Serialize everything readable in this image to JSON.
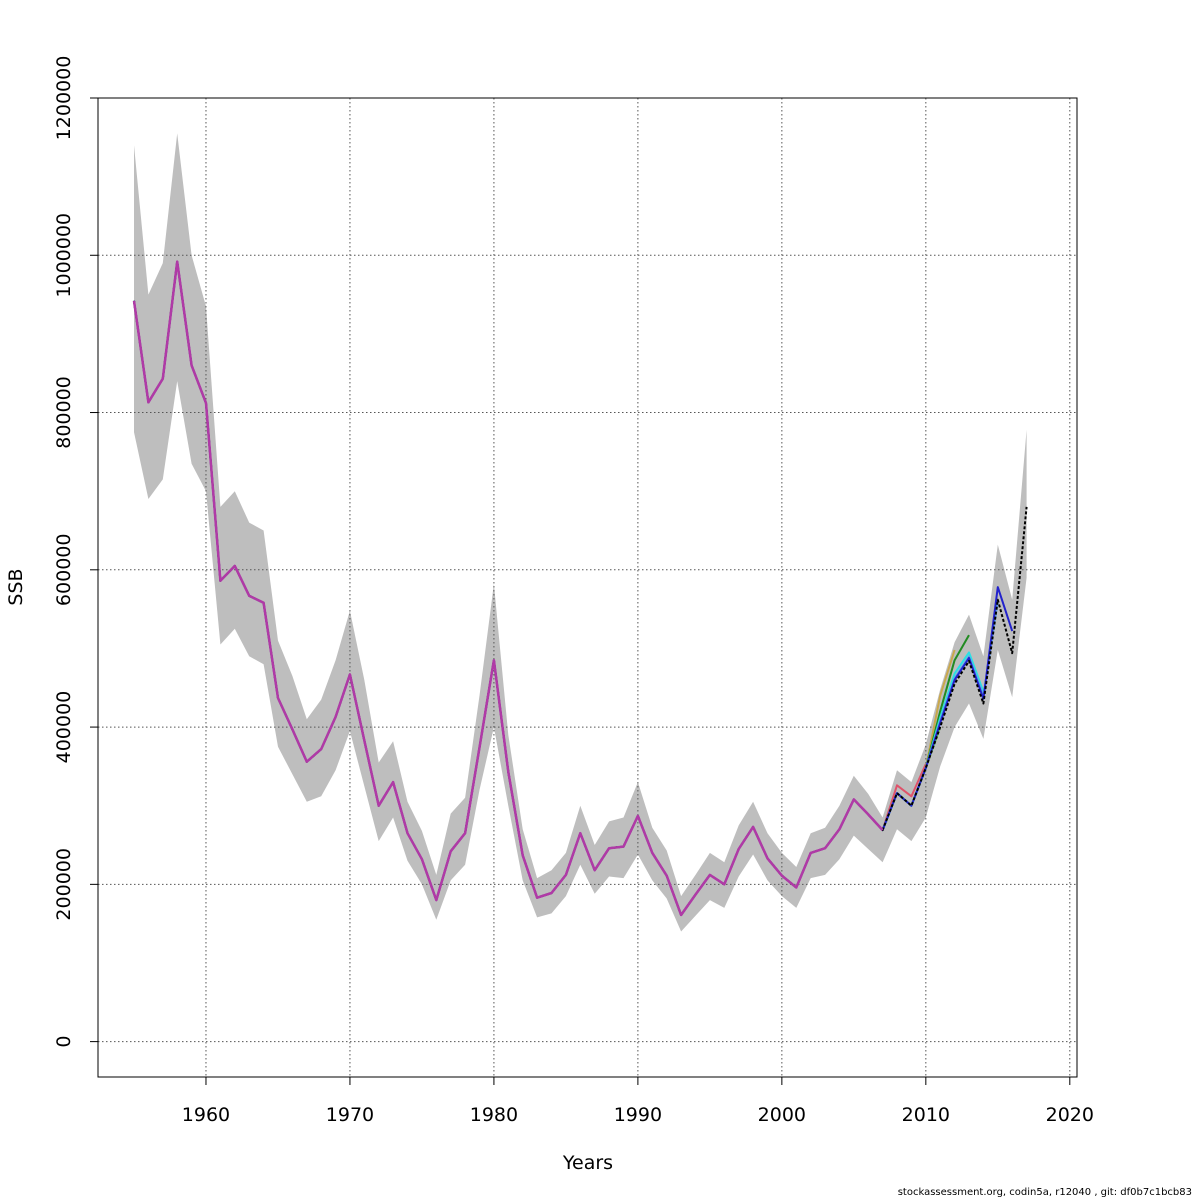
{
  "chart_data": {
    "type": "line",
    "xlabel": "Years",
    "ylabel": "SSB",
    "xlim": [
      1952.5,
      2020.5
    ],
    "ylim": [
      -45000,
      1200000
    ],
    "x_ticks": [
      1960,
      1970,
      1980,
      1990,
      2000,
      2010,
      2020
    ],
    "x_tick_labels": [
      "1960",
      "1970",
      "1980",
      "1990",
      "2000",
      "2010",
      "2020"
    ],
    "y_ticks": [
      0,
      200000,
      400000,
      600000,
      800000,
      1000000,
      1200000
    ],
    "y_tick_labels": [
      "0",
      "200000",
      "400000",
      "600000",
      "800000",
      "1000000",
      "1200000"
    ],
    "grid": true,
    "confidence_band_color": "#bebebe",
    "x": [
      1955,
      1956,
      1957,
      1958,
      1959,
      1960,
      1961,
      1962,
      1963,
      1964,
      1965,
      1966,
      1967,
      1968,
      1969,
      1970,
      1971,
      1972,
      1973,
      1974,
      1975,
      1976,
      1977,
      1978,
      1979,
      1980,
      1981,
      1982,
      1983,
      1984,
      1985,
      1986,
      1987,
      1988,
      1989,
      1990,
      1991,
      1992,
      1993,
      1994,
      1995,
      1996,
      1997,
      1998,
      1999,
      2000,
      2001,
      2002,
      2003,
      2004,
      2005,
      2006,
      2007,
      2008,
      2009,
      2010,
      2011,
      2012,
      2013,
      2014,
      2015,
      2016,
      2017
    ],
    "band_lower": [
      775000,
      690000,
      715000,
      840000,
      735000,
      700000,
      505000,
      525000,
      490000,
      480000,
      375000,
      340000,
      305000,
      312000,
      345000,
      395000,
      325000,
      255000,
      285000,
      230000,
      200000,
      155000,
      205000,
      225000,
      320000,
      400000,
      300000,
      205000,
      158000,
      163000,
      185000,
      225000,
      188000,
      210000,
      208000,
      238000,
      205000,
      182000,
      140000,
      160000,
      180000,
      170000,
      210000,
      238000,
      205000,
      185000,
      170000,
      208000,
      212000,
      232000,
      262000,
      245000,
      228000,
      270000,
      255000,
      285000,
      350000,
      400000,
      430000,
      385000,
      498000,
      438000,
      590000
    ],
    "band_upper": [
      1140000,
      950000,
      990000,
      1155000,
      1000000,
      935000,
      680000,
      700000,
      660000,
      650000,
      510000,
      465000,
      410000,
      435000,
      485000,
      548000,
      460000,
      355000,
      382000,
      305000,
      268000,
      212000,
      290000,
      310000,
      440000,
      582000,
      390000,
      270000,
      208000,
      218000,
      240000,
      300000,
      250000,
      280000,
      285000,
      330000,
      272000,
      243000,
      185000,
      212000,
      240000,
      228000,
      275000,
      305000,
      265000,
      240000,
      222000,
      265000,
      272000,
      300000,
      338000,
      315000,
      285000,
      345000,
      330000,
      378000,
      448000,
      508000,
      543000,
      490000,
      632000,
      562000,
      778000
    ],
    "series": [
      {
        "color": "#df536b",
        "values": [
          942000,
          813000,
          843000,
          992000,
          860000,
          812000,
          586000,
          605000,
          567000,
          558000,
          437000,
          397000,
          356000,
          372000,
          413000,
          467000,
          383000,
          300000,
          330000,
          265000,
          232000,
          180000,
          242000,
          265000,
          374000,
          485000,
          343000,
          237000,
          183000,
          189000,
          212000,
          265000,
          218000,
          246000,
          248000,
          287000,
          240000,
          211000,
          161000,
          187000,
          212000,
          200000,
          245000,
          273000,
          233000,
          211000,
          196000,
          240000,
          246000,
          270000,
          308000,
          289000,
          269000,
          326000,
          312000,
          353000,
          null,
          null,
          null,
          null,
          null,
          null,
          null
        ]
      },
      {
        "color": "#61d04f",
        "values": [
          942000,
          813000,
          843000,
          992000,
          860000,
          812000,
          586000,
          605000,
          567000,
          558000,
          437000,
          397000,
          356000,
          372000,
          413000,
          467000,
          383000,
          300000,
          330000,
          265000,
          232000,
          180000,
          242000,
          265000,
          374000,
          485000,
          343000,
          237000,
          183000,
          189000,
          212000,
          265000,
          218000,
          246000,
          248000,
          287000,
          240000,
          211000,
          161000,
          187000,
          212000,
          200000,
          245000,
          273000,
          233000,
          211000,
          196000,
          240000,
          246000,
          270000,
          308000,
          289000,
          269000,
          316000,
          300000,
          348000,
          400000,
          null,
          null,
          null,
          null,
          null,
          null
        ]
      },
      {
        "color": "#c9a84c",
        "values": [
          942000,
          813000,
          843000,
          992000,
          860000,
          812000,
          586000,
          605000,
          567000,
          558000,
          437000,
          397000,
          356000,
          372000,
          413000,
          467000,
          383000,
          300000,
          330000,
          265000,
          232000,
          180000,
          242000,
          265000,
          374000,
          485000,
          343000,
          237000,
          183000,
          189000,
          212000,
          265000,
          218000,
          246000,
          248000,
          287000,
          240000,
          211000,
          161000,
          187000,
          212000,
          200000,
          245000,
          273000,
          233000,
          211000,
          196000,
          240000,
          246000,
          270000,
          308000,
          289000,
          269000,
          316000,
          300000,
          348000,
          440000,
          498000,
          null,
          null,
          null,
          null,
          null
        ]
      },
      {
        "color": "#228b22",
        "values": [
          942000,
          813000,
          843000,
          992000,
          860000,
          812000,
          586000,
          605000,
          567000,
          558000,
          437000,
          397000,
          356000,
          372000,
          413000,
          467000,
          383000,
          300000,
          330000,
          265000,
          232000,
          180000,
          242000,
          265000,
          374000,
          485000,
          343000,
          237000,
          183000,
          189000,
          212000,
          265000,
          218000,
          246000,
          248000,
          287000,
          240000,
          211000,
          161000,
          187000,
          212000,
          200000,
          245000,
          273000,
          233000,
          211000,
          196000,
          240000,
          246000,
          270000,
          308000,
          289000,
          269000,
          316000,
          300000,
          348000,
          420000,
          485000,
          517000,
          null,
          null,
          null,
          null
        ]
      },
      {
        "color": "#28e2e5",
        "values": [
          942000,
          813000,
          843000,
          992000,
          860000,
          812000,
          586000,
          605000,
          567000,
          558000,
          437000,
          397000,
          356000,
          372000,
          413000,
          467000,
          383000,
          300000,
          330000,
          265000,
          232000,
          180000,
          242000,
          265000,
          374000,
          485000,
          343000,
          237000,
          183000,
          189000,
          212000,
          265000,
          218000,
          246000,
          248000,
          287000,
          240000,
          211000,
          161000,
          187000,
          212000,
          200000,
          245000,
          273000,
          233000,
          211000,
          196000,
          240000,
          246000,
          270000,
          308000,
          289000,
          269000,
          316000,
          300000,
          348000,
          412000,
          468000,
          495000,
          445000,
          null,
          null,
          null
        ]
      },
      {
        "color": "#5fa2e8",
        "values": [
          942000,
          813000,
          843000,
          992000,
          860000,
          812000,
          586000,
          605000,
          567000,
          558000,
          437000,
          397000,
          356000,
          372000,
          413000,
          467000,
          383000,
          300000,
          330000,
          265000,
          232000,
          180000,
          242000,
          265000,
          374000,
          485000,
          343000,
          237000,
          183000,
          189000,
          212000,
          265000,
          218000,
          246000,
          248000,
          287000,
          240000,
          211000,
          161000,
          187000,
          212000,
          200000,
          245000,
          273000,
          233000,
          211000,
          196000,
          240000,
          246000,
          270000,
          308000,
          289000,
          269000,
          316000,
          300000,
          348000,
          408000,
          462000,
          490000,
          440000,
          560000,
          null,
          null
        ]
      },
      {
        "color": "#2222cc",
        "values": [
          942000,
          813000,
          843000,
          992000,
          860000,
          812000,
          586000,
          605000,
          567000,
          558000,
          437000,
          397000,
          356000,
          372000,
          413000,
          467000,
          383000,
          300000,
          330000,
          265000,
          232000,
          180000,
          242000,
          265000,
          374000,
          485000,
          343000,
          237000,
          183000,
          189000,
          212000,
          265000,
          218000,
          246000,
          248000,
          287000,
          240000,
          211000,
          161000,
          187000,
          212000,
          200000,
          245000,
          273000,
          233000,
          211000,
          196000,
          240000,
          246000,
          270000,
          308000,
          289000,
          269000,
          316000,
          300000,
          348000,
          405000,
          460000,
          488000,
          436000,
          578000,
          522000,
          null
        ]
      },
      {
        "color": "#000000",
        "values": [
          942000,
          813000,
          843000,
          992000,
          860000,
          812000,
          586000,
          605000,
          567000,
          558000,
          437000,
          397000,
          356000,
          372000,
          413000,
          467000,
          383000,
          300000,
          330000,
          265000,
          232000,
          180000,
          242000,
          265000,
          374000,
          485000,
          343000,
          237000,
          183000,
          189000,
          212000,
          265000,
          218000,
          246000,
          248000,
          287000,
          240000,
          211000,
          161000,
          187000,
          212000,
          200000,
          245000,
          273000,
          233000,
          211000,
          196000,
          240000,
          246000,
          270000,
          308000,
          289000,
          269000,
          316000,
          300000,
          348000,
          400000,
          455000,
          484000,
          430000,
          562000,
          494000,
          680000
        ]
      },
      {
        "color": "#b03aa6",
        "values": [
          942000,
          813000,
          843000,
          992000,
          860000,
          812000,
          586000,
          605000,
          567000,
          558000,
          437000,
          397000,
          356000,
          372000,
          413000,
          467000,
          383000,
          300000,
          330000,
          265000,
          232000,
          180000,
          242000,
          265000,
          374000,
          485000,
          343000,
          237000,
          183000,
          189000,
          212000,
          265000,
          218000,
          246000,
          248000,
          287000,
          240000,
          211000,
          161000,
          187000,
          212000,
          200000,
          245000,
          273000,
          233000,
          211000,
          196000,
          240000,
          246000,
          270000,
          308000,
          289000,
          269000,
          null,
          null,
          null,
          null,
          null,
          null,
          null,
          null,
          null,
          null
        ]
      }
    ]
  },
  "footer": {
    "text": "stockassessment.org, codin5a, r12040 , git: df0b7c1bcb83"
  }
}
